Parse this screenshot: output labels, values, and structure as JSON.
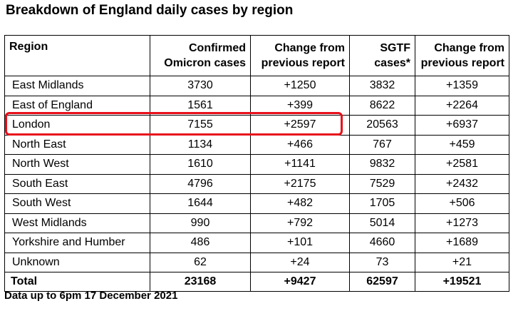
{
  "title": "Breakdown of England daily cases by region",
  "table": {
    "headers": [
      "Region",
      "Confirmed Omicron cases",
      "Change from previous report",
      "SGTF cases*",
      "Change from previous report"
    ],
    "header_lines": [
      [
        "Region"
      ],
      [
        "Confirmed",
        "Omicron cases"
      ],
      [
        "Change from",
        "previous report"
      ],
      [
        "SGTF",
        "cases*"
      ],
      [
        "Change from",
        "previous report"
      ]
    ],
    "rows": [
      [
        "East Midlands",
        "3730",
        "+1250",
        "3832",
        "+1359"
      ],
      [
        "East of England",
        "1561",
        "+399",
        "8622",
        "+2264"
      ],
      [
        "London",
        "7155",
        "+2597",
        "20563",
        "+6937"
      ],
      [
        "North East",
        "1134",
        "+466",
        "767",
        "+459"
      ],
      [
        "North West",
        "1610",
        "+1141",
        "9832",
        "+2581"
      ],
      [
        "South East",
        "4796",
        "+2175",
        "7529",
        "+2432"
      ],
      [
        "South West",
        "1644",
        "+482",
        "1705",
        "+506"
      ],
      [
        "West Midlands",
        "990",
        "+792",
        "5014",
        "+1273"
      ],
      [
        "Yorkshire and Humber",
        "486",
        "+101",
        "4660",
        "+1689"
      ],
      [
        "Unknown",
        "62",
        "+24",
        "73",
        "+21"
      ]
    ],
    "total": [
      "Total",
      "23168",
      "+9427",
      "62597",
      "+19521"
    ]
  },
  "highlight": {
    "row": "London",
    "color": "#e8101b"
  },
  "footnote": "Data up to 6pm 17 December 2021"
}
